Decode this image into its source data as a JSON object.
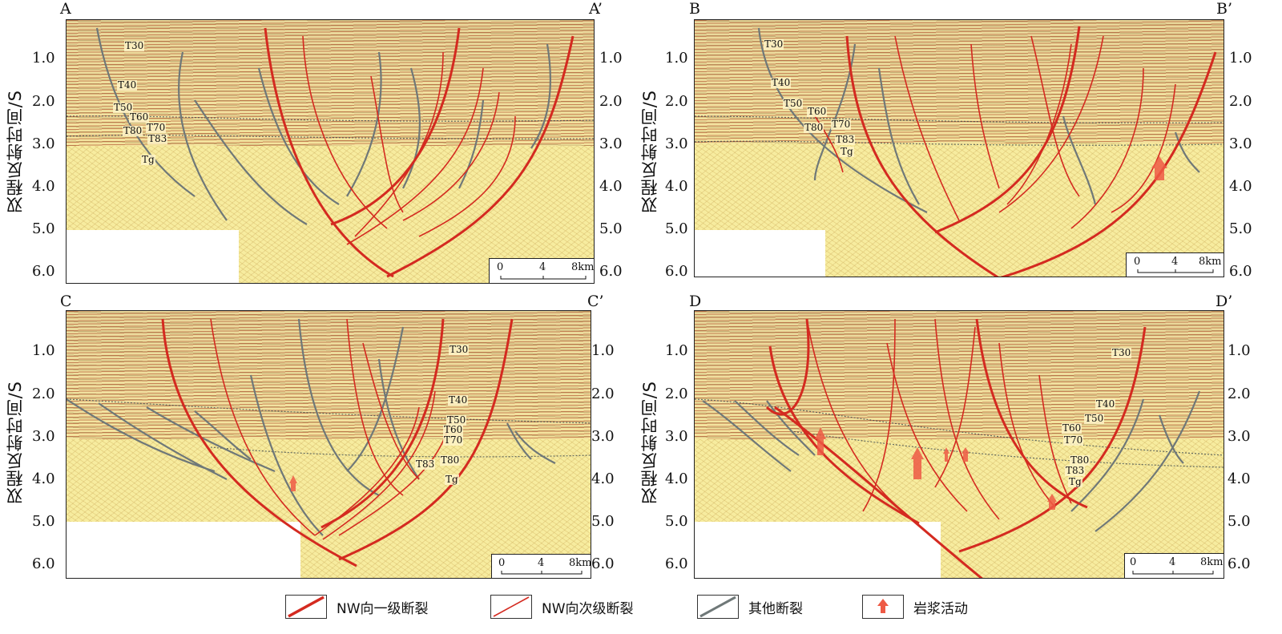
{
  "y_axis_title": "双程反射时间/S",
  "y_ticks": [
    "1.0",
    "2.0",
    "3.0",
    "4.0",
    "5.0",
    "6.0"
  ],
  "panels": [
    {
      "id": "A",
      "left_label": "A",
      "right_label": "A’",
      "tick_prefix_right": "",
      "horizons": [
        "T30",
        "T40",
        "T50",
        "T60",
        "T70",
        "T80",
        "T83",
        "Tg"
      ]
    },
    {
      "id": "B",
      "left_label": "B",
      "right_label": "B’",
      "tick_prefix_right": "",
      "horizons": [
        "T30",
        "T40",
        "T50",
        "T60",
        "T70",
        "T80",
        "T83",
        "Tg"
      ]
    },
    {
      "id": "C",
      "left_label": "C",
      "right_label": "C’",
      "tick_prefix_right": "-",
      "horizons": [
        "T30",
        "T40",
        "T50",
        "T60",
        "T70",
        "T80",
        "T83",
        "Tg"
      ]
    },
    {
      "id": "D",
      "left_label": "D",
      "right_label": "D’",
      "tick_prefix_right": "",
      "horizons": [
        "T30",
        "T40",
        "T50",
        "T60",
        "T70",
        "T80",
        "T83",
        "Tg"
      ]
    }
  ],
  "scale_bar": {
    "labels": [
      "0",
      "4",
      "8km"
    ]
  },
  "legend": [
    {
      "label": "NW向一级断裂",
      "color": "#d42a20"
    },
    {
      "label": "NW向次级断裂",
      "color": "#d42a20"
    },
    {
      "label": "其他断裂",
      "color": "#6f7878"
    },
    {
      "label": "岩浆活动",
      "color": "#ee5a45"
    }
  ],
  "colors": {
    "primary_fault": "#d42a20",
    "secondary_fault": "#d42a20",
    "other_fault": "#6f7878",
    "magma": "#ee5a45"
  }
}
